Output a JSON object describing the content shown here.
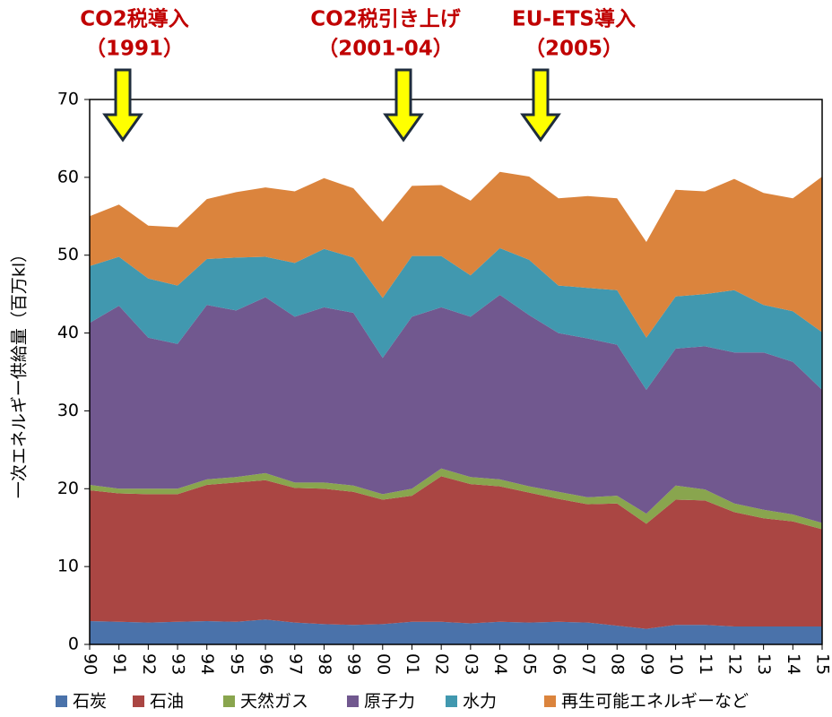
{
  "chart_data": {
    "type": "stacked_area",
    "y_label": "一次エネルギー供給量（百万kl）",
    "categories": [
      "90",
      "91",
      "92",
      "93",
      "94",
      "95",
      "96",
      "97",
      "98",
      "99",
      "00",
      "01",
      "02",
      "03",
      "04",
      "05",
      "06",
      "07",
      "08",
      "09",
      "10",
      "11",
      "12",
      "13",
      "14",
      "15"
    ],
    "series": [
      {
        "name": "石炭",
        "color": "#4a72aa",
        "values": [
          3.0,
          2.9,
          2.8,
          2.9,
          3.0,
          2.9,
          3.2,
          2.8,
          2.6,
          2.5,
          2.6,
          2.9,
          2.9,
          2.7,
          2.9,
          2.8,
          2.9,
          2.8,
          2.4,
          2.0,
          2.5,
          2.5,
          2.3,
          2.3,
          2.3,
          2.3
        ]
      },
      {
        "name": "石油",
        "color": "#aa4643",
        "values": [
          16.8,
          16.5,
          16.5,
          16.4,
          17.5,
          17.9,
          17.9,
          17.3,
          17.4,
          17.1,
          16.0,
          16.2,
          18.7,
          17.9,
          17.4,
          16.7,
          15.8,
          15.2,
          15.7,
          13.5,
          16.1,
          16.0,
          14.7,
          13.9,
          13.5,
          12.5
        ]
      },
      {
        "name": "天然ガス",
        "color": "#89a54e",
        "values": [
          0.7,
          0.6,
          0.7,
          0.7,
          0.7,
          0.7,
          0.9,
          0.7,
          0.8,
          0.8,
          0.7,
          0.9,
          1.0,
          0.9,
          0.9,
          0.8,
          0.9,
          0.9,
          1.0,
          1.3,
          1.8,
          1.4,
          1.1,
          1.1,
          0.9,
          0.8
        ]
      },
      {
        "name": "原子力",
        "color": "#71588f",
        "values": [
          20.8,
          23.5,
          19.4,
          18.6,
          22.4,
          21.4,
          22.6,
          21.3,
          22.5,
          22.2,
          17.5,
          22.1,
          20.7,
          20.6,
          23.7,
          22.0,
          20.4,
          20.4,
          19.4,
          15.9,
          17.6,
          18.4,
          19.4,
          20.2,
          19.6,
          17.1
        ]
      },
      {
        "name": "水力",
        "color": "#4198af",
        "values": [
          7.3,
          6.3,
          7.6,
          7.5,
          5.9,
          6.8,
          5.2,
          6.9,
          7.5,
          7.1,
          7.7,
          7.8,
          6.6,
          5.3,
          6.0,
          7.1,
          6.1,
          6.5,
          7.0,
          6.7,
          6.7,
          6.7,
          8.0,
          6.1,
          6.5,
          7.4
        ]
      },
      {
        "name": "再生可能エネルギーなど",
        "color": "#db843d",
        "values": [
          6.4,
          6.7,
          6.8,
          7.5,
          7.7,
          8.4,
          8.9,
          9.2,
          9.1,
          8.9,
          9.8,
          9.0,
          9.1,
          9.6,
          9.8,
          10.7,
          11.2,
          11.8,
          11.8,
          12.3,
          13.7,
          13.2,
          14.3,
          14.4,
          14.5,
          20.0
        ]
      }
    ],
    "ylim": [
      0,
      70
    ],
    "yticks": [
      0,
      10,
      20,
      30,
      40,
      50,
      60,
      70
    ],
    "annotations": [
      {
        "lines": [
          "CO2税導入",
          "（1991）"
        ]
      },
      {
        "lines": [
          "CO2税引き上げ",
          "（2001-04）"
        ]
      },
      {
        "lines": [
          "EU-ETS導入",
          "（2005）"
        ]
      }
    ],
    "annotation_color": "#c00000"
  }
}
